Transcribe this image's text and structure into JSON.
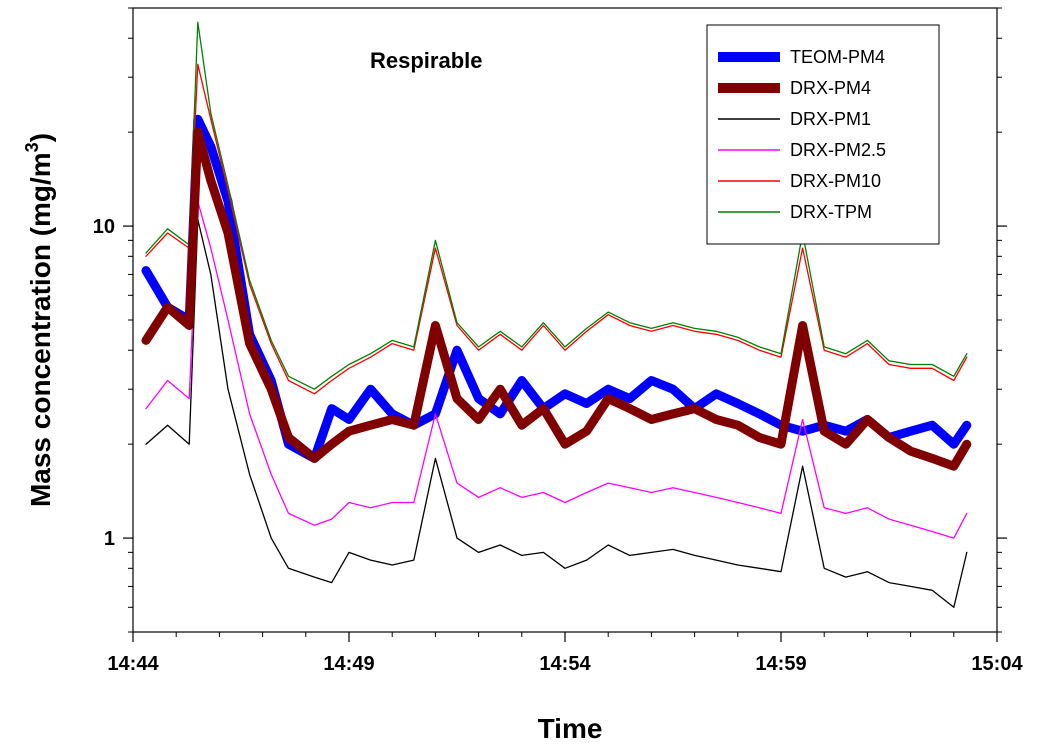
{
  "chart_data": {
    "type": "line",
    "annotation": "Respirable",
    "xlabel": "Time",
    "ylabel": "Mass concentration (mg/m",
    "ylabel_sup": "3",
    "ylabel_close": ")",
    "yscale": "log",
    "xlim": [
      "14:44",
      "15:04"
    ],
    "ylim": [
      0.5,
      50
    ],
    "x_ticks": [
      "14:44",
      "14:49",
      "14:54",
      "14:59",
      "15:04"
    ],
    "y_ticks": [
      "1",
      "10"
    ],
    "legend_position": "top-right",
    "series": [
      {
        "name": "TEOM-PM4",
        "color": "#0000ff",
        "style": "thick",
        "x": [
          "14:44.3",
          "14:44.8",
          "14:45.3",
          "14:45.5",
          "14:45.8",
          "14:46.2",
          "14:46.7",
          "14:47.2",
          "14:47.6",
          "14:48.2",
          "14:48.6",
          "14:49.0",
          "14:49.5",
          "14:50.0",
          "14:50.5",
          "14:51.0",
          "14:51.5",
          "14:52.0",
          "14:52.5",
          "14:53.0",
          "14:53.5",
          "14:54.0",
          "14:54.5",
          "14:55.0",
          "14:55.5",
          "14:56.0",
          "14:56.5",
          "14:57.0",
          "14:57.5",
          "14:58.0",
          "14:58.5",
          "14:59.0",
          "14:59.5",
          "15:00.0",
          "15:00.5",
          "15:01.0",
          "15:01.5",
          "15:02.0",
          "15:02.5",
          "15:03.0",
          "15:03.3"
        ],
        "y": [
          7.2,
          5.5,
          5.0,
          22.0,
          18.0,
          12.0,
          4.5,
          3.2,
          2.0,
          1.8,
          2.6,
          2.4,
          3.0,
          2.5,
          2.3,
          2.5,
          4.0,
          2.8,
          2.5,
          3.2,
          2.6,
          2.9,
          2.7,
          3.0,
          2.8,
          3.2,
          3.0,
          2.6,
          2.9,
          2.7,
          2.5,
          2.3,
          2.2,
          2.3,
          2.2,
          2.4,
          2.1,
          2.2,
          2.3,
          2.0,
          2.3
        ]
      },
      {
        "name": "DRX-PM4",
        "color": "#800000",
        "style": "thick",
        "x": [
          "14:44.3",
          "14:44.8",
          "14:45.3",
          "14:45.5",
          "14:45.8",
          "14:46.2",
          "14:46.7",
          "14:47.2",
          "14:47.6",
          "14:48.2",
          "14:48.6",
          "14:49.0",
          "14:49.5",
          "14:50.0",
          "14:50.5",
          "14:51.0",
          "14:51.5",
          "14:52.0",
          "14:52.5",
          "14:53.0",
          "14:53.5",
          "14:54.0",
          "14:54.5",
          "14:55.0",
          "14:55.5",
          "14:56.0",
          "14:56.5",
          "14:57.0",
          "14:57.5",
          "14:58.0",
          "14:58.5",
          "14:59.0",
          "14:59.5",
          "15:00.0",
          "15:00.5",
          "15:01.0",
          "15:01.5",
          "15:02.0",
          "15:02.5",
          "15:03.0",
          "15:03.3"
        ],
        "y": [
          4.3,
          5.5,
          4.8,
          20.0,
          14.0,
          9.5,
          4.2,
          3.0,
          2.1,
          1.8,
          2.0,
          2.2,
          2.3,
          2.4,
          2.3,
          4.8,
          2.8,
          2.4,
          3.0,
          2.3,
          2.6,
          2.0,
          2.2,
          2.8,
          2.6,
          2.4,
          2.5,
          2.6,
          2.4,
          2.3,
          2.1,
          2.0,
          4.8,
          2.2,
          2.0,
          2.4,
          2.1,
          1.9,
          1.8,
          1.7,
          2.0
        ]
      },
      {
        "name": "DRX-PM1",
        "color": "#000000",
        "style": "thin",
        "x": [
          "14:44.3",
          "14:44.8",
          "14:45.3",
          "14:45.5",
          "14:45.8",
          "14:46.2",
          "14:46.7",
          "14:47.2",
          "14:47.6",
          "14:48.2",
          "14:48.6",
          "14:49.0",
          "14:49.5",
          "14:50.0",
          "14:50.5",
          "14:51.0",
          "14:51.5",
          "14:52.0",
          "14:52.5",
          "14:53.0",
          "14:53.5",
          "14:54.0",
          "14:54.5",
          "14:55.0",
          "14:55.5",
          "14:56.0",
          "14:56.5",
          "14:57.0",
          "14:57.5",
          "14:58.0",
          "14:58.5",
          "14:59.0",
          "14:59.5",
          "15:00.0",
          "15:00.5",
          "15:01.0",
          "15:01.5",
          "15:02.0",
          "15:02.5",
          "15:03.0",
          "15:03.3"
        ],
        "y": [
          2.0,
          2.3,
          2.0,
          10.5,
          7.0,
          3.0,
          1.6,
          1.0,
          0.8,
          0.75,
          0.72,
          0.9,
          0.85,
          0.82,
          0.85,
          1.8,
          1.0,
          0.9,
          0.95,
          0.88,
          0.9,
          0.8,
          0.85,
          0.95,
          0.88,
          0.9,
          0.92,
          0.88,
          0.85,
          0.82,
          0.8,
          0.78,
          1.7,
          0.8,
          0.75,
          0.78,
          0.72,
          0.7,
          0.68,
          0.6,
          0.9
        ]
      },
      {
        "name": "DRX-PM2.5",
        "color": "#ff00ff",
        "style": "thin",
        "x": [
          "14:44.3",
          "14:44.8",
          "14:45.3",
          "14:45.5",
          "14:45.8",
          "14:46.2",
          "14:46.7",
          "14:47.2",
          "14:47.6",
          "14:48.2",
          "14:48.6",
          "14:49.0",
          "14:49.5",
          "14:50.0",
          "14:50.5",
          "14:51.0",
          "14:51.5",
          "14:52.0",
          "14:52.5",
          "14:53.0",
          "14:53.5",
          "14:54.0",
          "14:54.5",
          "14:55.0",
          "14:55.5",
          "14:56.0",
          "14:56.5",
          "14:57.0",
          "14:57.5",
          "14:58.0",
          "14:58.5",
          "14:59.0",
          "14:59.5",
          "15:00.0",
          "15:00.5",
          "15:01.0",
          "15:01.5",
          "15:02.0",
          "15:02.5",
          "15:03.0",
          "15:03.3"
        ],
        "y": [
          2.6,
          3.2,
          2.8,
          12.0,
          8.5,
          5.0,
          2.5,
          1.6,
          1.2,
          1.1,
          1.15,
          1.3,
          1.25,
          1.3,
          1.3,
          2.5,
          1.5,
          1.35,
          1.45,
          1.35,
          1.4,
          1.3,
          1.4,
          1.5,
          1.45,
          1.4,
          1.45,
          1.4,
          1.35,
          1.3,
          1.25,
          1.2,
          2.4,
          1.25,
          1.2,
          1.25,
          1.15,
          1.1,
          1.05,
          1.0,
          1.2
        ]
      },
      {
        "name": "DRX-PM10",
        "color": "#ff0000",
        "style": "thin",
        "x": [
          "14:44.3",
          "14:44.8",
          "14:45.3",
          "14:45.5",
          "14:45.8",
          "14:46.2",
          "14:46.7",
          "14:47.2",
          "14:47.6",
          "14:48.2",
          "14:48.6",
          "14:49.0",
          "14:49.5",
          "14:50.0",
          "14:50.5",
          "14:51.0",
          "14:51.5",
          "14:52.0",
          "14:52.5",
          "14:53.0",
          "14:53.5",
          "14:54.0",
          "14:54.5",
          "14:55.0",
          "14:55.5",
          "14:56.0",
          "14:56.5",
          "14:57.0",
          "14:57.5",
          "14:58.0",
          "14:58.5",
          "14:59.0",
          "14:59.5",
          "15:00.0",
          "15:00.5",
          "15:01.0",
          "15:01.5",
          "15:02.0",
          "15:02.5",
          "15:03.0",
          "15:03.3"
        ],
        "y": [
          8.0,
          9.5,
          8.5,
          33.0,
          22.0,
          13.0,
          6.5,
          4.2,
          3.2,
          2.9,
          3.2,
          3.5,
          3.8,
          4.2,
          4.0,
          8.5,
          4.8,
          4.0,
          4.5,
          4.0,
          4.8,
          4.0,
          4.6,
          5.2,
          4.8,
          4.6,
          4.8,
          4.6,
          4.5,
          4.3,
          4.0,
          3.8,
          8.5,
          4.0,
          3.8,
          4.2,
          3.6,
          3.5,
          3.5,
          3.2,
          3.8
        ]
      },
      {
        "name": "DRX-TPM",
        "color": "#008000",
        "style": "thin",
        "x": [
          "14:44.3",
          "14:44.8",
          "14:45.3",
          "14:45.5",
          "14:45.8",
          "14:46.2",
          "14:46.7",
          "14:47.2",
          "14:47.6",
          "14:48.2",
          "14:48.6",
          "14:49.0",
          "14:49.5",
          "14:50.0",
          "14:50.5",
          "14:51.0",
          "14:51.5",
          "14:52.0",
          "14:52.5",
          "14:53.0",
          "14:53.5",
          "14:54.0",
          "14:54.5",
          "14:55.0",
          "14:55.5",
          "14:56.0",
          "14:56.5",
          "14:57.0",
          "14:57.5",
          "14:58.0",
          "14:58.5",
          "14:59.0",
          "14:59.5",
          "15:00.0",
          "15:00.5",
          "15:01.0",
          "15:01.5",
          "15:02.0",
          "15:02.5",
          "15:03.0",
          "15:03.3"
        ],
        "y": [
          8.2,
          9.8,
          8.7,
          45.0,
          23.0,
          13.5,
          6.7,
          4.3,
          3.3,
          3.0,
          3.3,
          3.6,
          3.9,
          4.3,
          4.1,
          9.0,
          4.9,
          4.1,
          4.6,
          4.1,
          4.9,
          4.1,
          4.7,
          5.3,
          4.9,
          4.7,
          4.9,
          4.7,
          4.6,
          4.4,
          4.1,
          3.9,
          9.5,
          4.1,
          3.9,
          4.3,
          3.7,
          3.6,
          3.6,
          3.3,
          3.9
        ]
      }
    ]
  }
}
